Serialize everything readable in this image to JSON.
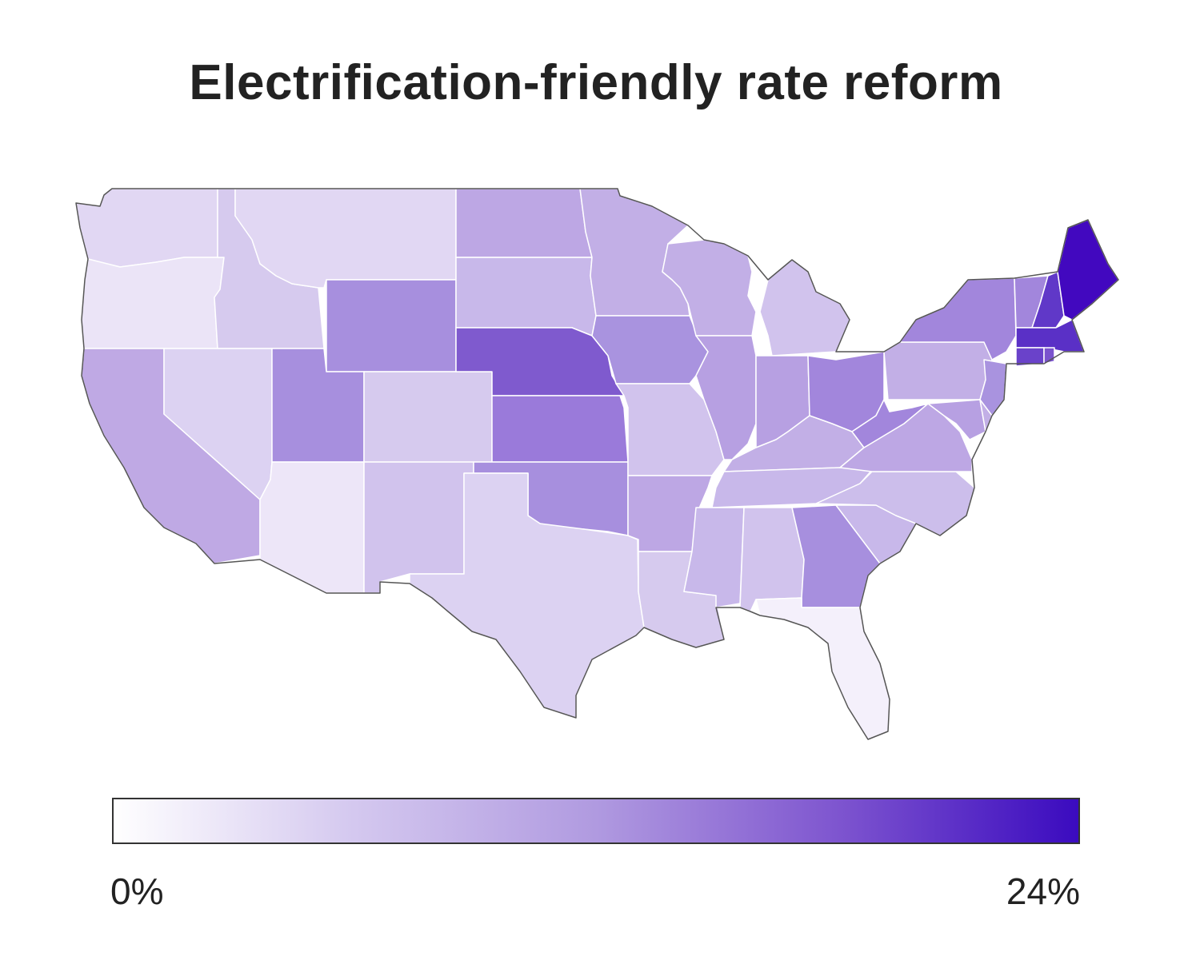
{
  "title": "Electrification-friendly rate reform",
  "legend": {
    "min_label": "0%",
    "max_label": "24%",
    "min_value": 0,
    "max_value": 24,
    "color_low": "#ffffff",
    "color_high": "#3a0abf"
  },
  "colors": {
    "state_stroke": "#ffffff",
    "outline_stroke": "#555555"
  }
}
